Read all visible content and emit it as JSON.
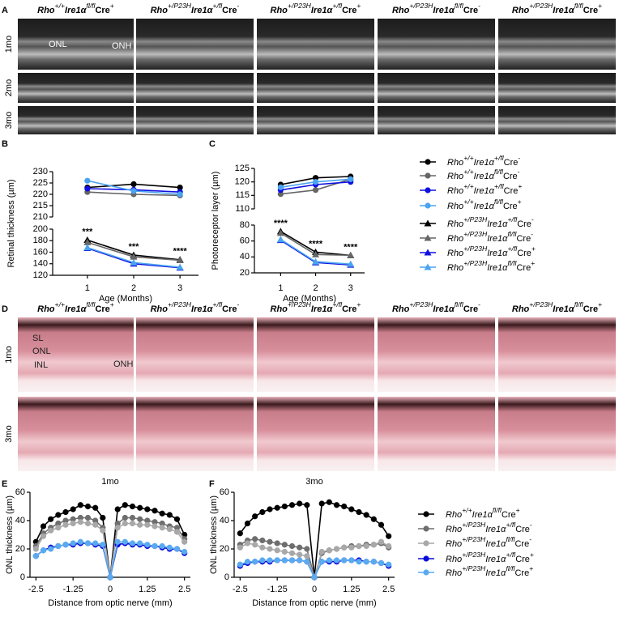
{
  "figure": {
    "panel_a": {
      "letter": "A",
      "columns": [
        [
          "Rho",
          "+/+",
          "Ire1α",
          "fl/fl",
          "Cre",
          "+"
        ],
        [
          "Rho",
          "+/P23H",
          "Ire1α",
          "+/fl",
          "Cre",
          "-"
        ],
        [
          "Rho",
          "+/P23H",
          "Ire1α",
          "+/fl",
          "Cre",
          "+"
        ],
        [
          "Rho",
          "+/P23H",
          "Ire1α",
          "fl/fl",
          "Cre",
          "-"
        ],
        [
          "Rho",
          "+/P23H",
          "Ire1α",
          "fl/fl",
          "Cre",
          "+"
        ]
      ],
      "rows": [
        "1mo",
        "2mo",
        "3mo"
      ],
      "image_labels": [
        "ONL",
        "ONH"
      ]
    },
    "panel_d": {
      "letter": "D",
      "columns": [
        [
          "Rho",
          "+/+",
          "Ire1α",
          "fl/fl",
          "Cre",
          "+"
        ],
        [
          "Rho",
          "+/P23H",
          "Ire1α",
          "+/fl",
          "Cre",
          "-"
        ],
        [
          "Rho",
          "+/P23H",
          "Ire1α",
          "+/fl",
          "Cre",
          "+"
        ],
        [
          "Rho",
          "+/P23H",
          "Ire1α",
          "fl/fl",
          "Cre",
          "-"
        ],
        [
          "Rho",
          "+/P23H",
          "Ire1α",
          "fl/fl",
          "Cre",
          "+"
        ]
      ],
      "rows": [
        "1mo",
        "3mo"
      ],
      "image_labels": [
        "SL",
        "ONL",
        "INL",
        "ONH"
      ]
    }
  },
  "chart_data": [
    {
      "type": "line",
      "letter": "B",
      "xlabel": "Age (Months)",
      "ylabel": "Retinal thickness (µm)",
      "x": [
        1,
        2,
        3
      ],
      "xlim": [
        0.25,
        3.4
      ],
      "xticks": [
        1,
        2,
        3
      ],
      "segments": [
        {
          "ylim": [
            210,
            230
          ],
          "yticks": [
            210,
            215,
            220,
            225,
            230
          ]
        },
        {
          "ylim": [
            120,
            200
          ],
          "yticks": [
            120,
            140,
            160,
            180,
            200
          ]
        }
      ],
      "annotations": [
        "***",
        "***",
        "****"
      ],
      "series": [
        {
          "name": [
            "Rho",
            "+/+",
            "Ire1α",
            "+/fl",
            "Cre",
            "-"
          ],
          "marker": "circle",
          "color": "#000000",
          "segment": 0,
          "values": [
            223,
            224.5,
            223
          ]
        },
        {
          "name": [
            "Rho",
            "+/+",
            "Ire1α",
            "fl/fl",
            "Cre",
            "-"
          ],
          "marker": "circle",
          "color": "#666666",
          "segment": 0,
          "values": [
            221,
            220,
            219.5
          ]
        },
        {
          "name": [
            "Rho",
            "+/+",
            "Ire1α",
            "+/fl",
            "Cre",
            "+"
          ],
          "marker": "circle",
          "color": "#1010e0",
          "segment": 0,
          "values": [
            222.5,
            222,
            221
          ]
        },
        {
          "name": [
            "Rho",
            "+/+",
            "Ire1α",
            "fl/fl",
            "Cre",
            "+"
          ],
          "marker": "circle",
          "color": "#4aa3f0",
          "segment": 0,
          "values": [
            226,
            221.5,
            220
          ]
        },
        {
          "name": [
            "Rho",
            "+/P23H",
            "Ire1α",
            "+/fl",
            "Cre",
            "-"
          ],
          "marker": "triangle",
          "color": "#000000",
          "segment": 1,
          "values": [
            181,
            155,
            147
          ]
        },
        {
          "name": [
            "Rho",
            "+/P23H",
            "Ire1α",
            "fl/fl",
            "Cre",
            "-"
          ],
          "marker": "triangle",
          "color": "#666666",
          "segment": 1,
          "values": [
            177,
            152,
            146
          ]
        },
        {
          "name": [
            "Rho",
            "+/P23H",
            "Ire1α",
            "+/fl",
            "Cre",
            "+"
          ],
          "marker": "triangle",
          "color": "#1010e0",
          "segment": 1,
          "values": [
            167,
            140,
            133
          ]
        },
        {
          "name": [
            "Rho",
            "+/P23H",
            "Ire1α",
            "fl/fl",
            "Cre",
            "+"
          ],
          "marker": "triangle",
          "color": "#4aa3f0",
          "segment": 1,
          "values": [
            168,
            142,
            134
          ]
        }
      ]
    },
    {
      "type": "line",
      "letter": "C",
      "xlabel": "Age (Months)",
      "ylabel": "Photoreceptor layer (µm)",
      "x": [
        1,
        2,
        3
      ],
      "xlim": [
        0.25,
        3.4
      ],
      "xticks": [
        1,
        2,
        3
      ],
      "segments": [
        {
          "ylim": [
            110,
            125
          ],
          "yticks": [
            110,
            115,
            120,
            125
          ]
        },
        {
          "ylim": [
            20,
            80
          ],
          "yticks": [
            20,
            40,
            60,
            80
          ]
        }
      ],
      "annotations": [
        "****",
        "****",
        "****"
      ],
      "series": [
        {
          "marker": "circle",
          "color": "#000000",
          "segment": 0,
          "values": [
            119,
            121.5,
            122
          ]
        },
        {
          "marker": "circle",
          "color": "#666666",
          "segment": 0,
          "values": [
            115.5,
            117,
            121
          ]
        },
        {
          "marker": "circle",
          "color": "#1010e0",
          "segment": 0,
          "values": [
            117,
            119,
            120
          ]
        },
        {
          "marker": "circle",
          "color": "#4aa3f0",
          "segment": 0,
          "values": [
            118,
            120,
            121
          ]
        },
        {
          "marker": "triangle",
          "color": "#000000",
          "segment": 1,
          "values": [
            72,
            46,
            42
          ]
        },
        {
          "marker": "triangle",
          "color": "#666666",
          "segment": 1,
          "values": [
            70,
            43,
            42
          ]
        },
        {
          "marker": "triangle",
          "color": "#1010e0",
          "segment": 1,
          "values": [
            61,
            33,
            30
          ]
        },
        {
          "marker": "triangle",
          "color": "#4aa3f0",
          "segment": 1,
          "values": [
            62,
            34,
            31
          ]
        }
      ]
    },
    {
      "type": "line",
      "letter": "E",
      "title": "1mo",
      "xlabel": "Distance from optic nerve (mm)",
      "ylabel": "ONL thickness (µm)",
      "x": [
        -2.5,
        -2.25,
        -2,
        -1.75,
        -1.5,
        -1.25,
        -1,
        -0.75,
        -0.5,
        -0.25,
        0,
        0.25,
        0.5,
        0.75,
        1,
        1.25,
        1.5,
        1.75,
        2,
        2.25,
        2.5
      ],
      "xlim": [
        -2.7,
        2.7
      ],
      "xticks": [
        -2.5,
        -1.25,
        0,
        1.25,
        2.5
      ],
      "ylim": [
        0,
        60
      ],
      "yticks": [
        0,
        20,
        40,
        60
      ],
      "series": [
        {
          "name": [
            "Rho",
            "+/+",
            "Ire1α",
            "fl/fl",
            "Cre",
            "+"
          ],
          "marker": "circle",
          "color": "#000000",
          "values": [
            25,
            36,
            41,
            44,
            46,
            48,
            51,
            50,
            49,
            42,
            0,
            48,
            51,
            50,
            49,
            48,
            47,
            45,
            44,
            41,
            30
          ]
        },
        {
          "name": [
            "Rho",
            "+/P23H",
            "Ire1α",
            "+/fl",
            "Cre",
            "-"
          ],
          "marker": "circle",
          "color": "#6e6e6e",
          "values": [
            22,
            31,
            35,
            38,
            40,
            41,
            42,
            42,
            40,
            35,
            0,
            38,
            42,
            42,
            41,
            40,
            39,
            38,
            36,
            35,
            27
          ]
        },
        {
          "name": [
            "Rho",
            "+/P23H",
            "Ire1α",
            "fl/fl",
            "Cre",
            "-"
          ],
          "marker": "circle",
          "color": "#a8a8a8",
          "values": [
            20,
            29,
            33,
            35,
            37,
            38,
            39,
            38,
            37,
            33,
            0,
            35,
            38,
            38,
            37,
            37,
            36,
            35,
            34,
            32,
            25
          ]
        },
        {
          "name": [
            "Rho",
            "+/P23H",
            "Ire1α",
            "+/fl",
            "Cre",
            "+"
          ],
          "marker": "circle",
          "color": "#0a0adc",
          "values": [
            15,
            19,
            21,
            22,
            23,
            23,
            24,
            24,
            23,
            22,
            0,
            23,
            24,
            23,
            23,
            22,
            22,
            21,
            20,
            20,
            17
          ]
        },
        {
          "name": [
            "Rho",
            "+/P23H",
            "Ire1α",
            "fl/fl",
            "Cre",
            "+"
          ],
          "marker": "circle",
          "color": "#5aaaf0",
          "values": [
            15,
            19,
            20,
            22,
            23,
            24,
            25,
            24,
            24,
            23,
            0,
            25,
            25,
            24,
            24,
            23,
            22,
            22,
            21,
            20,
            18
          ]
        }
      ]
    },
    {
      "type": "line",
      "letter": "F",
      "title": "3mo",
      "xlabel": "Distance from optic nerve (mm)",
      "ylabel": "ONL thickness (µm)",
      "x": [
        -2.5,
        -2.25,
        -2,
        -1.75,
        -1.5,
        -1.25,
        -1,
        -0.75,
        -0.5,
        -0.25,
        0,
        0.25,
        0.5,
        0.75,
        1,
        1.25,
        1.5,
        1.75,
        2,
        2.25,
        2.5
      ],
      "xlim": [
        -2.7,
        2.7
      ],
      "xticks": [
        -2.5,
        -1.25,
        0,
        1.25,
        2.5
      ],
      "ylim": [
        0,
        60
      ],
      "yticks": [
        0,
        20,
        40,
        60
      ],
      "series": [
        {
          "marker": "circle",
          "color": "#000000",
          "values": [
            31,
            38,
            43,
            46,
            48,
            49,
            50,
            51,
            52,
            51,
            0,
            52,
            53,
            51,
            50,
            48,
            46,
            44,
            41,
            37,
            29
          ]
        },
        {
          "marker": "circle",
          "color": "#6e6e6e",
          "values": [
            23,
            26,
            27,
            26,
            25,
            24,
            23,
            22,
            21,
            20,
            0,
            17,
            19,
            20,
            21,
            22,
            22,
            23,
            23,
            24,
            21
          ]
        },
        {
          "marker": "circle",
          "color": "#a8a8a8",
          "values": [
            21,
            24,
            23,
            21,
            20,
            19,
            18,
            17,
            16,
            15,
            0,
            18,
            19,
            20,
            21,
            21,
            22,
            22,
            23,
            25,
            22
          ]
        },
        {
          "marker": "circle",
          "color": "#0a0adc",
          "values": [
            8,
            10,
            11,
            11,
            11,
            12,
            12,
            12,
            12,
            11,
            0,
            11,
            11,
            11,
            12,
            12,
            12,
            11,
            11,
            10,
            8
          ]
        },
        {
          "marker": "circle",
          "color": "#5aaaf0",
          "values": [
            9,
            11,
            11,
            12,
            12,
            12,
            12,
            12,
            12,
            11,
            0,
            11,
            12,
            12,
            12,
            12,
            11,
            11,
            11,
            10,
            9
          ]
        }
      ]
    }
  ]
}
